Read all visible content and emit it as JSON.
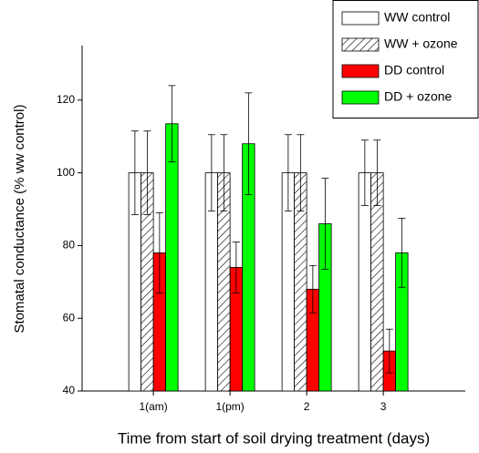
{
  "chart_data": {
    "type": "bar",
    "x_label": "Time from start of soil drying treatment (days)",
    "y_label": "Stomatal conductance (% ww control)",
    "categories": [
      "1(am)",
      "1(pm)",
      "2",
      "3"
    ],
    "ylim": [
      40,
      135
    ],
    "yticks": [
      40,
      60,
      80,
      100,
      120
    ],
    "legend": "upper right",
    "series": [
      {
        "name": "WW control",
        "color": "#ffffff",
        "values": [
          100,
          100,
          100,
          100
        ],
        "errors": [
          11.5,
          10.5,
          10.5,
          9
        ]
      },
      {
        "name": "WW + ozone",
        "color": "#ffffff",
        "pattern": "hatch",
        "values": [
          100,
          100,
          100,
          100
        ],
        "errors": [
          11.5,
          10.5,
          10.5,
          9
        ]
      },
      {
        "name": "DD control",
        "color": "#ff0000",
        "values": [
          78,
          74,
          68,
          51
        ],
        "errors": [
          11,
          7,
          6.5,
          6
        ]
      },
      {
        "name": "DD + ozone",
        "color": "#00ff00",
        "values": [
          113.5,
          108,
          86,
          78
        ],
        "errors": [
          10.5,
          14,
          12.5,
          9.5
        ]
      }
    ]
  }
}
